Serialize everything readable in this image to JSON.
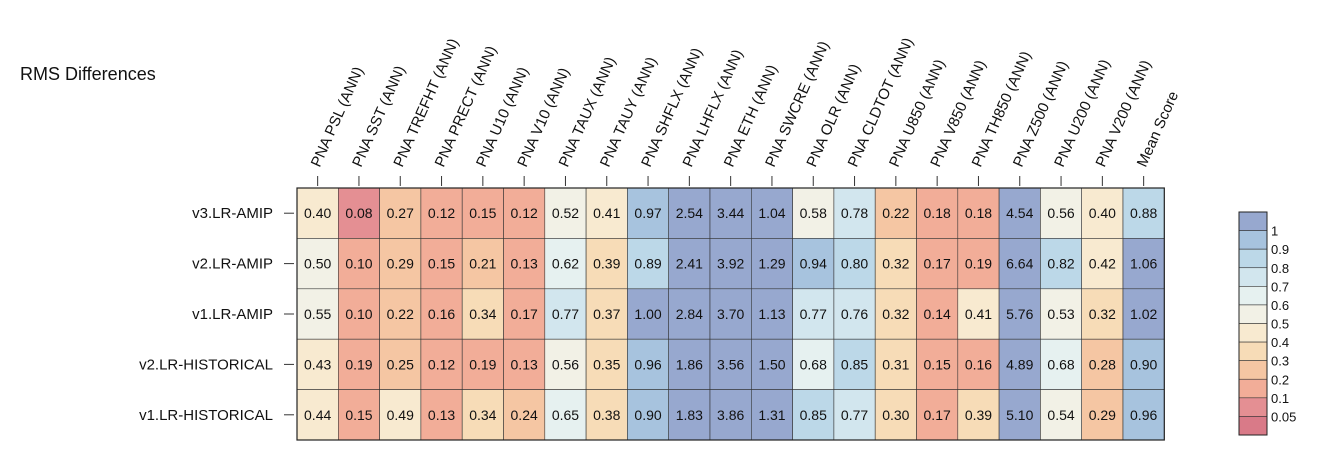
{
  "chart_data": {
    "type": "heatmap",
    "title": "RMS Differences",
    "columns": [
      "PNA PSL (ANN)",
      "PNA SST (ANN)",
      "PNA TREFHT (ANN)",
      "PNA PRECT (ANN)",
      "PNA U10 (ANN)",
      "PNA V10 (ANN)",
      "PNA TAUX (ANN)",
      "PNA TAUY (ANN)",
      "PNA SHFLX (ANN)",
      "PNA LHFLX (ANN)",
      "PNA ETH (ANN)",
      "PNA SWCRE (ANN)",
      "PNA OLR (ANN)",
      "PNA CLDTOT (ANN)",
      "PNA U850 (ANN)",
      "PNA V850 (ANN)",
      "PNA TH850 (ANN)",
      "PNA Z500 (ANN)",
      "PNA U200 (ANN)",
      "PNA V200 (ANN)",
      "Mean Score"
    ],
    "rows": [
      "v3.LR-AMIP",
      "v2.LR-AMIP",
      "v1.LR-AMIP",
      "v2.LR-HISTORICAL",
      "v1.LR-HISTORICAL"
    ],
    "values": [
      [
        0.4,
        0.08,
        0.27,
        0.12,
        0.15,
        0.12,
        0.52,
        0.41,
        0.97,
        2.54,
        3.44,
        1.04,
        0.58,
        0.78,
        0.22,
        0.18,
        0.18,
        4.54,
        0.56,
        0.4,
        0.88
      ],
      [
        0.5,
        0.1,
        0.29,
        0.15,
        0.21,
        0.13,
        0.62,
        0.39,
        0.89,
        2.41,
        3.92,
        1.29,
        0.94,
        0.8,
        0.32,
        0.17,
        0.19,
        6.64,
        0.82,
        0.42,
        1.06
      ],
      [
        0.55,
        0.1,
        0.22,
        0.16,
        0.34,
        0.17,
        0.77,
        0.37,
        1.0,
        2.84,
        3.7,
        1.13,
        0.77,
        0.76,
        0.32,
        0.14,
        0.41,
        5.76,
        0.53,
        0.32,
        1.02
      ],
      [
        0.43,
        0.19,
        0.25,
        0.12,
        0.19,
        0.13,
        0.56,
        0.35,
        0.96,
        1.86,
        3.56,
        1.5,
        0.68,
        0.85,
        0.31,
        0.15,
        0.16,
        4.89,
        0.68,
        0.28,
        0.9
      ],
      [
        0.44,
        0.15,
        0.49,
        0.13,
        0.34,
        0.24,
        0.65,
        0.38,
        0.9,
        1.83,
        3.86,
        1.31,
        0.85,
        0.77,
        0.3,
        0.17,
        0.39,
        5.1,
        0.54,
        0.29,
        0.96
      ]
    ],
    "colorbar": {
      "ticks": [
        "1",
        "0.9",
        "0.8",
        "0.7",
        "0.6",
        "0.5",
        "0.4",
        "0.3",
        "0.2",
        "0.1",
        "0.05"
      ],
      "bins": [
        {
          "min": 1.0,
          "color": "#97a8cf"
        },
        {
          "min": 0.9,
          "color": "#a7c3de"
        },
        {
          "min": 0.8,
          "color": "#bcd8e8"
        },
        {
          "min": 0.7,
          "color": "#d2e6ee"
        },
        {
          "min": 0.6,
          "color": "#e6f1f0"
        },
        {
          "min": 0.5,
          "color": "#f2f1e6"
        },
        {
          "min": 0.4,
          "color": "#f8ead0"
        },
        {
          "min": 0.3,
          "color": "#f7dcb7"
        },
        {
          "min": 0.2,
          "color": "#f5c6a3"
        },
        {
          "min": 0.1,
          "color": "#f2ad98"
        },
        {
          "min": 0.05,
          "color": "#e48f93"
        },
        {
          "min": 0.0,
          "color": "#d97a88"
        }
      ]
    }
  }
}
